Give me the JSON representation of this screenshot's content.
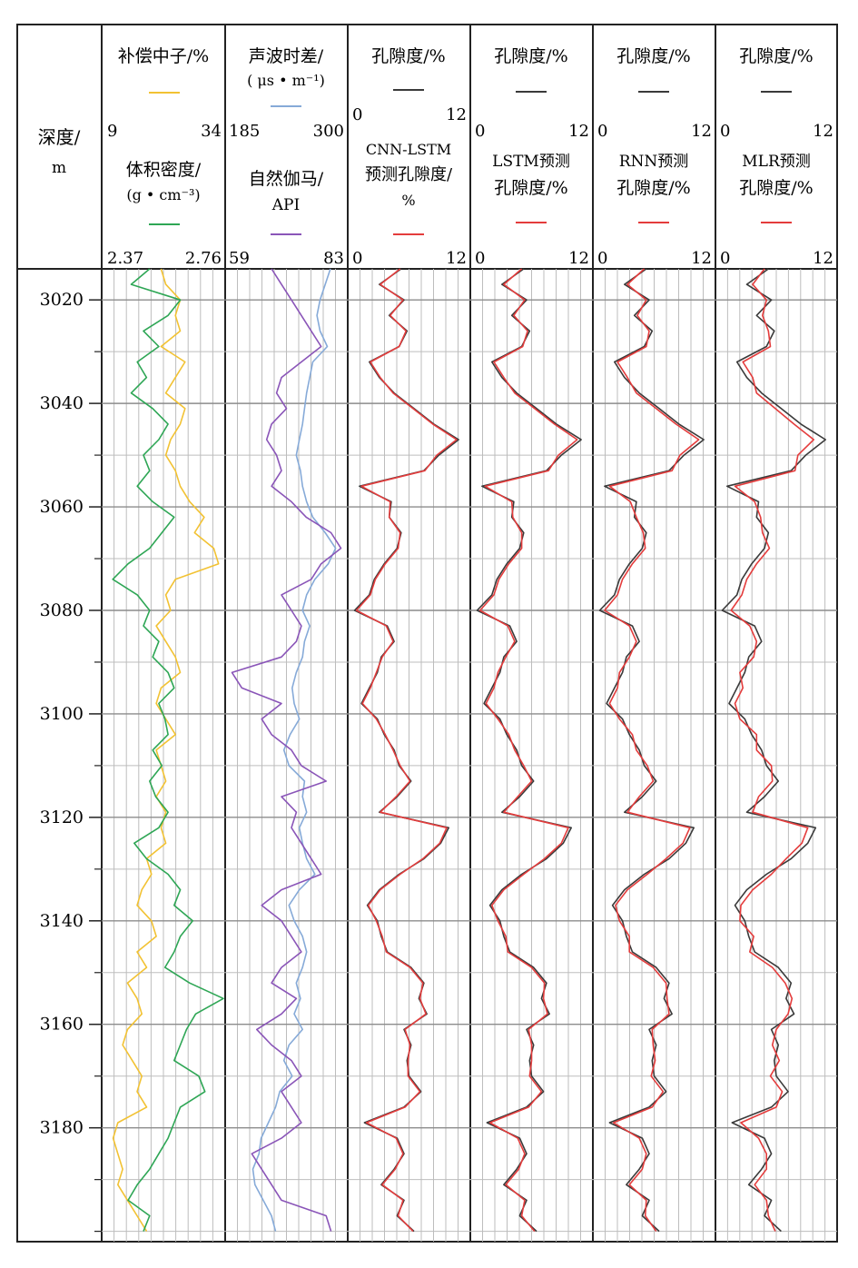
{
  "header": {
    "depth_label": "深度/",
    "depth_unit": "m"
  },
  "tracks": [
    {
      "id": "logs1",
      "title1": "补偿中子/%",
      "scale1": {
        "min": "9",
        "max": "34"
      },
      "title2": "体积密度/",
      "title2b": "(g • cm⁻³)",
      "scale2": {
        "min": "2.37",
        "max": "2.76"
      }
    },
    {
      "id": "logs2",
      "title1": "声波时差/",
      "title1b": "( μs • m⁻¹)",
      "scale1": {
        "min": "185",
        "max": "300"
      },
      "title2": "自然伽马/",
      "title2b": "API",
      "scale2": {
        "min": "59",
        "max": "83"
      }
    },
    {
      "id": "cnn",
      "title1": "孔隙度/%",
      "scale1": {
        "min": "0",
        "max": "12"
      },
      "title2": "CNN-LSTM",
      "title2b": "预测孔隙度/",
      "title2c": "%",
      "scale2": {
        "min": "0",
        "max": "12"
      }
    },
    {
      "id": "lstm",
      "title1": "孔隙度/%",
      "scale1": {
        "min": "0",
        "max": "12"
      },
      "title2": "LSTM预测",
      "title2b": "孔隙度/%",
      "scale2": {
        "min": "0",
        "max": "12"
      }
    },
    {
      "id": "rnn",
      "title1": "孔隙度/%",
      "scale1": {
        "min": "0",
        "max": "12"
      },
      "title2": "RNN预测",
      "title2b": "孔隙度/%",
      "scale2": {
        "min": "0",
        "max": "12"
      }
    },
    {
      "id": "mlr",
      "title1": "孔隙度/%",
      "scale1": {
        "min": "0",
        "max": "12"
      },
      "title2": "MLR预测",
      "title2b": "孔隙度/%",
      "scale2": {
        "min": "0",
        "max": "12"
      }
    }
  ],
  "colors": {
    "neutron": "#f2c233",
    "density": "#2ea655",
    "sonic": "#86aad8",
    "gamma": "#8a55b8",
    "porosity_measured": "#3a3a3a",
    "porosity_predicted": "#e43c3c",
    "grid": "#bdbdbd",
    "grid_major": "#8c8c8c",
    "frame": "#222222"
  },
  "chart_data": {
    "type": "line",
    "title": "",
    "ylabel": "深度/m",
    "depth_range": [
      3014,
      3202
    ],
    "depth_ticks": [
      3020,
      3040,
      3060,
      3080,
      3100,
      3120,
      3140,
      3160,
      3180
    ],
    "depth": [
      3014,
      3017,
      3020,
      3023,
      3026,
      3029,
      3032,
      3035,
      3038,
      3041,
      3044,
      3047,
      3050,
      3053,
      3056,
      3059,
      3062,
      3065,
      3068,
      3071,
      3074,
      3077,
      3080,
      3083,
      3086,
      3089,
      3092,
      3095,
      3098,
      3101,
      3104,
      3107,
      3110,
      3113,
      3116,
      3119,
      3122,
      3125,
      3128,
      3131,
      3134,
      3137,
      3140,
      3143,
      3146,
      3149,
      3152,
      3155,
      3158,
      3161,
      3164,
      3167,
      3170,
      3173,
      3176,
      3179,
      3182,
      3185,
      3188,
      3191,
      3194,
      3197,
      3200
    ],
    "series": [
      {
        "name": "补偿中子/%",
        "track": 0,
        "xlim": [
          9,
          34
        ],
        "values": [
          21,
          22,
          25,
          24,
          25,
          21,
          26,
          24,
          22,
          26,
          25,
          23,
          22,
          24,
          25,
          27,
          30,
          28,
          32,
          33,
          24,
          22,
          23,
          20,
          22,
          24,
          25,
          21,
          20,
          22,
          24,
          20,
          21,
          22,
          20,
          22,
          21,
          22,
          18,
          19,
          17,
          16,
          19,
          20,
          16,
          18,
          14,
          16,
          17,
          14,
          13,
          15,
          17,
          16,
          18,
          12,
          11,
          12,
          13,
          12,
          14,
          16,
          18
        ]
      },
      {
        "name": "体积密度/(g • cm⁻³)",
        "track": 0,
        "xlim": [
          2.37,
          2.76
        ],
        "values": [
          2.52,
          2.46,
          2.62,
          2.58,
          2.5,
          2.55,
          2.48,
          2.51,
          2.46,
          2.53,
          2.58,
          2.55,
          2.5,
          2.52,
          2.48,
          2.53,
          2.6,
          2.56,
          2.52,
          2.45,
          2.4,
          2.48,
          2.52,
          2.5,
          2.55,
          2.53,
          2.58,
          2.6,
          2.55,
          2.57,
          2.58,
          2.53,
          2.56,
          2.52,
          2.54,
          2.58,
          2.55,
          2.47,
          2.51,
          2.58,
          2.62,
          2.6,
          2.66,
          2.62,
          2.6,
          2.57,
          2.65,
          2.76,
          2.67,
          2.64,
          2.62,
          2.6,
          2.68,
          2.7,
          2.62,
          2.6,
          2.58,
          2.55,
          2.52,
          2.48,
          2.45,
          2.52,
          2.5
        ]
      },
      {
        "name": "声波时差/(μs • m⁻¹)",
        "track": 1,
        "xlim": [
          185,
          300
        ],
        "values": [
          285,
          280,
          275,
          272,
          275,
          282,
          268,
          265,
          262,
          260,
          258,
          255,
          252,
          256,
          258,
          262,
          268,
          280,
          290,
          283,
          270,
          262,
          258,
          265,
          260,
          258,
          252,
          248,
          250,
          255,
          246,
          240,
          245,
          260,
          258,
          262,
          255,
          258,
          262,
          270,
          255,
          245,
          250,
          258,
          262,
          258,
          252,
          256,
          250,
          258,
          245,
          240,
          248,
          236,
          232,
          225,
          218,
          216,
          210,
          212,
          220,
          228,
          232
        ]
      },
      {
        "name": "自然伽马/API",
        "track": 1,
        "xlim": [
          59,
          83
        ],
        "values": [
          68,
          70,
          72,
          74,
          76,
          78,
          74,
          70,
          69,
          71,
          68,
          67,
          69,
          70,
          68,
          72,
          75,
          80,
          82,
          78,
          76,
          70,
          72,
          74,
          73,
          70,
          60,
          62,
          70,
          66,
          68,
          72,
          74,
          79,
          70,
          73,
          72,
          74,
          76,
          78,
          70,
          66,
          70,
          72,
          74,
          70,
          68,
          73,
          70,
          65,
          68,
          72,
          74,
          70,
          72,
          74,
          70,
          64,
          66,
          68,
          70,
          79,
          80
        ]
      },
      {
        "name": "孔隙度/%",
        "track": 2,
        "xlim": [
          0,
          12
        ],
        "values": [
          5.2,
          3,
          5.5,
          4,
          5.8,
          5,
          2,
          3,
          4.5,
          6.5,
          8.5,
          11,
          9,
          7.5,
          1,
          4.2,
          4,
          5.2,
          4.8,
          3.5,
          2.5,
          2,
          0.5,
          3.8,
          4.5,
          3.2,
          2.8,
          2,
          1.2,
          2.8,
          3.5,
          4.5,
          5,
          6.2,
          4.8,
          3,
          10,
          9.2,
          7.5,
          5,
          3,
          1.8,
          2.8,
          3.2,
          3.8,
          6.2,
          7.5,
          7,
          7.8,
          5.5,
          6.2,
          5.8,
          6,
          7.2,
          5.5,
          1.5,
          4.8,
          5.5,
          4.5,
          3.2,
          5.5,
          4.8,
          6.5
        ]
      },
      {
        "name": "CNN-LSTM预测孔隙度/%",
        "track": 2,
        "xlim": [
          0,
          12
        ],
        "values": [
          5.1,
          3.1,
          5.4,
          4.1,
          5.7,
          5,
          2.1,
          3.1,
          4.4,
          6.4,
          8.4,
          10.8,
          8.8,
          7.6,
          1.2,
          4.1,
          4,
          5.1,
          4.9,
          3.6,
          2.6,
          2.1,
          0.7,
          3.7,
          4.4,
          3.3,
          2.7,
          2.1,
          1.3,
          2.7,
          3.6,
          4.4,
          5.1,
          6.1,
          4.7,
          3.1,
          9.8,
          9.1,
          7.4,
          5.1,
          3.1,
          1.9,
          2.7,
          3.3,
          3.7,
          6.1,
          7.4,
          7.1,
          7.7,
          5.6,
          6.1,
          5.9,
          5.9,
          7.1,
          5.6,
          1.7,
          4.7,
          5.4,
          4.6,
          3.3,
          5.4,
          4.9,
          6.4
        ]
      },
      {
        "name": "孔隙度/%",
        "track": 3,
        "xlim": [
          0,
          12
        ],
        "values": [
          5.2,
          3,
          5.5,
          4,
          5.8,
          5,
          2,
          3,
          4.5,
          6.5,
          8.5,
          11,
          9,
          7.5,
          1,
          4.2,
          4,
          5.2,
          4.8,
          3.5,
          2.5,
          2,
          0.5,
          3.8,
          4.5,
          3.2,
          2.8,
          2,
          1.2,
          2.8,
          3.5,
          4.5,
          5,
          6.2,
          4.8,
          3,
          10,
          9.2,
          7.5,
          5,
          3,
          1.8,
          2.8,
          3.2,
          3.8,
          6.2,
          7.5,
          7,
          7.8,
          5.5,
          6.2,
          5.8,
          6,
          7.2,
          5.5,
          1.5,
          4.8,
          5.5,
          4.5,
          3.2,
          5.5,
          4.8,
          6.5
        ]
      },
      {
        "name": "LSTM预测孔隙度/%",
        "track": 3,
        "xlim": [
          0,
          12
        ],
        "values": [
          5,
          3.2,
          5.3,
          4.2,
          5.6,
          5.1,
          2.2,
          3.2,
          4.3,
          6.3,
          8.3,
          10.6,
          8.7,
          7.7,
          1.3,
          4,
          4.1,
          5,
          5,
          3.7,
          2.7,
          2.2,
          0.8,
          3.6,
          4.3,
          3.4,
          2.6,
          2.2,
          1.4,
          2.6,
          3.7,
          4.3,
          5.2,
          6,
          4.6,
          3.2,
          9.7,
          9,
          7.3,
          5.2,
          3.2,
          2,
          2.6,
          3.4,
          3.6,
          6,
          7.3,
          7.2,
          7.6,
          5.7,
          6,
          6,
          5.8,
          7,
          5.7,
          1.8,
          4.6,
          5.3,
          4.7,
          3.4,
          5.3,
          5,
          6.3
        ]
      },
      {
        "name": "孔隙度/%",
        "track": 4,
        "xlim": [
          0,
          12
        ],
        "values": [
          5.2,
          3,
          5.5,
          4,
          5.8,
          5,
          2,
          3,
          4.5,
          6.5,
          8.5,
          11,
          9,
          7.5,
          1,
          4.2,
          4,
          5.2,
          4.8,
          3.5,
          2.5,
          2,
          0.5,
          3.8,
          4.5,
          3.2,
          2.8,
          2,
          1.2,
          2.8,
          3.5,
          4.5,
          5,
          6.2,
          4.8,
          3,
          10,
          9.2,
          7.5,
          5,
          3,
          1.8,
          2.8,
          3.2,
          3.8,
          6.2,
          7.5,
          7,
          7.8,
          5.5,
          6.2,
          5.8,
          6,
          7.2,
          5.5,
          1.5,
          4.8,
          5.5,
          4.5,
          3.2,
          5.5,
          4.8,
          6.5
        ]
      },
      {
        "name": "RNN预测孔隙度/%",
        "track": 4,
        "xlim": [
          0,
          12
        ],
        "values": [
          5,
          3.3,
          5.2,
          4.3,
          5.5,
          5.2,
          2.3,
          3.3,
          4.2,
          6.2,
          8.2,
          10.5,
          8.6,
          7.8,
          1.5,
          3.6,
          4.2,
          4.9,
          5.1,
          3.8,
          2.8,
          2.3,
          1,
          3.5,
          4.2,
          3.5,
          2.5,
          2.3,
          1.5,
          2.5,
          3.8,
          4.2,
          5.3,
          5.9,
          4.5,
          3.3,
          9.6,
          8.9,
          7.2,
          5.3,
          3.3,
          2.1,
          2.5,
          3.5,
          3.5,
          5.9,
          7.2,
          7.3,
          7.5,
          5.8,
          5.9,
          6.1,
          5.7,
          6.9,
          5.8,
          1.9,
          4.5,
          5.2,
          4.8,
          3.5,
          5.2,
          5.1,
          6.2
        ]
      },
      {
        "name": "孔隙度/%",
        "track": 5,
        "xlim": [
          0,
          12
        ],
        "values": [
          5.2,
          3,
          5.5,
          4,
          5.8,
          5,
          2,
          3,
          4.5,
          6.5,
          8.5,
          11,
          9,
          7.5,
          1,
          4.2,
          4,
          5.2,
          4.8,
          3.5,
          2.5,
          2,
          0.5,
          3.8,
          4.5,
          3.2,
          2.8,
          2,
          1.2,
          2.8,
          3.5,
          4.5,
          5,
          6.2,
          4.8,
          3,
          10,
          9.2,
          7.5,
          5,
          3,
          1.8,
          2.8,
          3.2,
          3.8,
          6.2,
          7.5,
          7,
          7.8,
          5.5,
          6.2,
          5.8,
          6,
          7.2,
          5.5,
          1.5,
          4.8,
          5.5,
          4.5,
          3.2,
          5.5,
          4.8,
          6.5
        ]
      },
      {
        "name": "MLR预测孔隙度/%",
        "track": 5,
        "xlim": [
          0,
          12
        ],
        "values": [
          4.8,
          3.6,
          5,
          4.6,
          5.2,
          5.4,
          2.6,
          3.6,
          4,
          5.9,
          7.8,
          9.8,
          8.2,
          7.9,
          1.8,
          3.8,
          4.4,
          4.6,
          5.3,
          4,
          3,
          2.5,
          1.4,
          3.3,
          4,
          3.7,
          2.3,
          2.6,
          1.8,
          2.3,
          4,
          4,
          5.5,
          5.6,
          4.2,
          3.6,
          9.2,
          8.6,
          7,
          5.5,
          3.6,
          2.4,
          2.3,
          3.7,
          3.3,
          5.6,
          6.9,
          7.6,
          7.2,
          6,
          5.6,
          6.3,
          5.4,
          6.6,
          6,
          2.4,
          4.2,
          5,
          5,
          3.8,
          5,
          5.2,
          5.9
        ]
      }
    ]
  }
}
